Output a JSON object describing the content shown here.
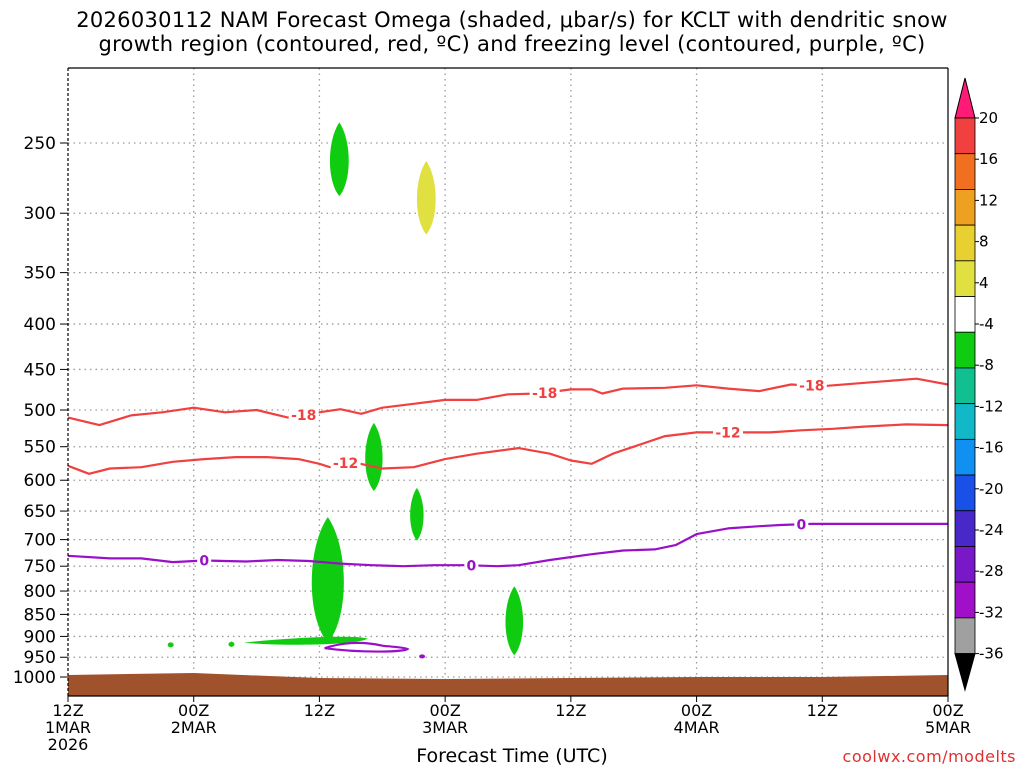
{
  "title": {
    "line1": "2026030112 NAM Forecast Omega (shaded, μbar/s) for KCLT with dendritic snow",
    "line2": "growth region (contoured, red, ºC) and freezing level (contoured, purple, ºC)"
  },
  "xlabel": "Forecast Time (UTC)",
  "credit": "coolwx.com/modelts",
  "colors": {
    "isotherm": "#f04040",
    "freezing": "#9a10c8",
    "ground": "#a0522d",
    "omega_neg4": "#10cc10",
    "omega_pos4": "#e0e040",
    "grid": "#9a9a9a"
  },
  "chart_data": {
    "type": "time-height cross-section",
    "station": "KCLT",
    "run": "2026030112",
    "y_axis": {
      "label": "",
      "ticks": [
        "250",
        "300",
        "350",
        "400",
        "450",
        "500",
        "550",
        "600",
        "650",
        "700",
        "750",
        "800",
        "850",
        "900",
        "950",
        "1000"
      ],
      "scale": "log-pressure",
      "reversed": true
    },
    "x_axis": {
      "label": "Forecast Time (UTC)",
      "ticks": [
        {
          "hour": 0,
          "lines": [
            "12Z",
            "1MAR",
            "2026"
          ]
        },
        {
          "hour": 12,
          "lines": [
            "00Z",
            "2MAR"
          ]
        },
        {
          "hour": 24,
          "lines": [
            "12Z"
          ]
        },
        {
          "hour": 36,
          "lines": [
            "00Z",
            "3MAR"
          ]
        },
        {
          "hour": 48,
          "lines": [
            "12Z"
          ]
        },
        {
          "hour": 60,
          "lines": [
            "00Z",
            "4MAR"
          ]
        },
        {
          "hour": 72,
          "lines": [
            "12Z"
          ]
        },
        {
          "hour": 84,
          "lines": [
            "00Z",
            "5MAR"
          ]
        }
      ],
      "range_hours": [
        0,
        84
      ]
    },
    "contours": [
      {
        "label": "-18",
        "color": "#f04040",
        "label_at_hours": [
          22.5,
          45.5,
          71
        ],
        "points": [
          [
            0,
            510
          ],
          [
            3,
            520
          ],
          [
            6,
            507
          ],
          [
            9,
            503
          ],
          [
            12,
            497
          ],
          [
            15,
            503
          ],
          [
            18,
            500
          ],
          [
            21,
            510
          ],
          [
            24,
            503
          ],
          [
            26,
            499
          ],
          [
            28,
            505
          ],
          [
            30,
            497
          ],
          [
            33,
            492
          ],
          [
            36,
            487
          ],
          [
            39,
            487
          ],
          [
            42,
            480
          ],
          [
            45,
            479
          ],
          [
            48,
            474
          ],
          [
            50,
            474
          ],
          [
            51,
            479
          ],
          [
            53,
            473
          ],
          [
            57,
            472
          ],
          [
            60,
            469
          ],
          [
            63,
            473
          ],
          [
            66,
            476
          ],
          [
            69,
            468
          ],
          [
            72,
            470
          ],
          [
            75,
            467
          ],
          [
            78,
            464
          ],
          [
            81,
            461
          ],
          [
            84,
            468
          ]
        ]
      },
      {
        "label": "-12",
        "color": "#f04040",
        "label_at_hours": [
          26.5,
          63
        ],
        "points": [
          [
            0,
            578
          ],
          [
            2,
            590
          ],
          [
            4,
            582
          ],
          [
            7,
            580
          ],
          [
            10,
            572
          ],
          [
            13,
            568
          ],
          [
            16,
            565
          ],
          [
            19,
            565
          ],
          [
            22,
            568
          ],
          [
            24,
            575
          ],
          [
            25,
            580
          ],
          [
            27,
            572
          ],
          [
            30,
            582
          ],
          [
            33,
            580
          ],
          [
            36,
            568
          ],
          [
            39,
            560
          ],
          [
            43,
            552
          ],
          [
            46,
            560
          ],
          [
            48,
            570
          ],
          [
            50,
            575
          ],
          [
            52,
            560
          ],
          [
            54,
            550
          ],
          [
            57,
            535
          ],
          [
            60,
            530
          ],
          [
            64,
            530
          ],
          [
            67,
            530
          ],
          [
            70,
            527
          ],
          [
            73,
            525
          ],
          [
            76,
            522
          ],
          [
            80,
            519
          ],
          [
            84,
            520
          ]
        ]
      },
      {
        "label": "0",
        "color": "#9a10c8",
        "label_at_hours": [
          13,
          38.5,
          70
        ],
        "points": [
          [
            0,
            730
          ],
          [
            4,
            735
          ],
          [
            7,
            735
          ],
          [
            10,
            742
          ],
          [
            13,
            739
          ],
          [
            17,
            741
          ],
          [
            20,
            738
          ],
          [
            23,
            740
          ],
          [
            26,
            745
          ],
          [
            29,
            748
          ],
          [
            32,
            750
          ],
          [
            35,
            748
          ],
          [
            38,
            748
          ],
          [
            41,
            750
          ],
          [
            43,
            748
          ],
          [
            46,
            738
          ],
          [
            50,
            727
          ],
          [
            53,
            720
          ],
          [
            56,
            718
          ],
          [
            58,
            710
          ],
          [
            60,
            690
          ],
          [
            63,
            680
          ],
          [
            66,
            676
          ],
          [
            68,
            674
          ],
          [
            71,
            672
          ],
          [
            75,
            672
          ],
          [
            80,
            672
          ],
          [
            84,
            672
          ]
        ]
      }
    ],
    "omega_shaded": [
      {
        "class": "-4 to -8",
        "color": "#10cc10",
        "center_hour": 25.9,
        "p_range": [
          237,
          287
        ]
      },
      {
        "class": "4 to 8",
        "color": "#e0e040",
        "center_hour": 34.2,
        "p_range": [
          262,
          317
        ]
      },
      {
        "class": "-4 to -8",
        "color": "#10cc10",
        "center_hour": 29.2,
        "p_range": [
          517,
          617
        ]
      },
      {
        "class": "-4 to -8",
        "color": "#10cc10",
        "center_hour": 33.3,
        "p_range": [
          612,
          702
        ]
      },
      {
        "class": "-4 to -8",
        "color": "#10cc10",
        "center_hour": 24.8,
        "p_range": [
          660,
          915
        ]
      },
      {
        "class": "-4 to -8",
        "color": "#10cc10",
        "center_hour": 42.6,
        "p_range": [
          790,
          945
        ]
      },
      {
        "class": "-4 to -8",
        "color": "#10cc10",
        "center_hour": 15.6,
        "p_range": [
          912,
          925
        ]
      }
    ],
    "colorbar": {
      "labels": [
        "20",
        "16",
        "12",
        "8",
        "4",
        "-4",
        "-8",
        "-12",
        "-16",
        "-20",
        "-24",
        "-28",
        "-32",
        "-36"
      ],
      "colors": [
        "#ff1a78",
        "#f04040",
        "#f07020",
        "#eea020",
        "#e8d030",
        "#e0e040",
        "#ffffff",
        "#10cc10",
        "#10c090",
        "#10b8c8",
        "#1090f0",
        "#1850e8",
        "#4828c8",
        "#7818c8",
        "#a010c8",
        "#a0a0a0",
        "#000000"
      ]
    }
  }
}
